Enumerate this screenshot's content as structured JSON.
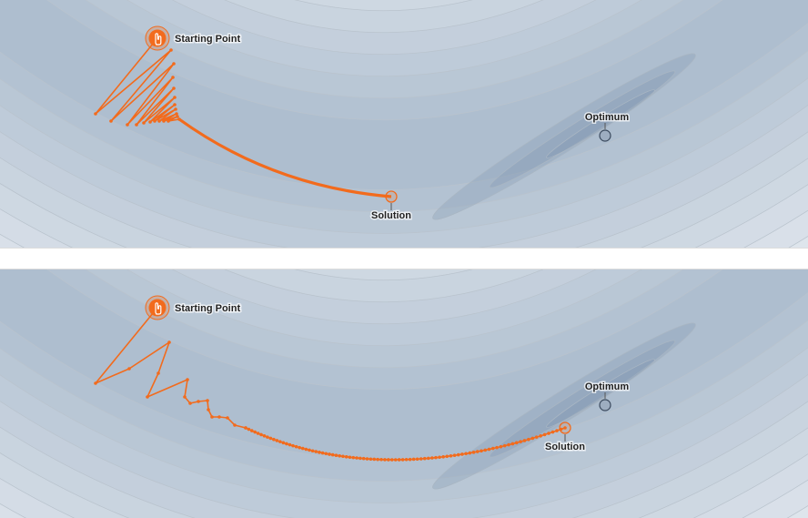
{
  "panels": [
    {
      "start_label": "Starting Point",
      "solution_label": "Solution",
      "optimum_label": "Optimum"
    },
    {
      "start_label": "Starting Point",
      "solution_label": "Solution",
      "optimum_label": "Optimum"
    }
  ]
}
